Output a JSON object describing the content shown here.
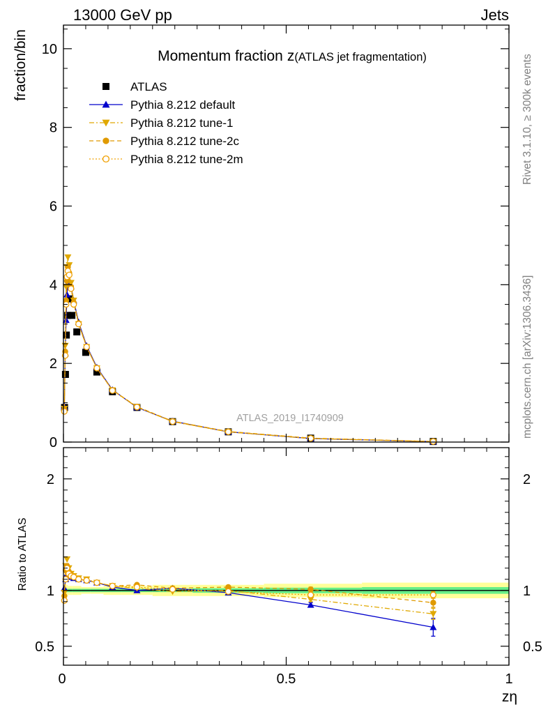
{
  "header": {
    "energy_label": "13000 GeV pp",
    "process_label": "Jets",
    "side_rivet": "Rivet 3.1.10, ≥ 300k events",
    "side_mcplots": "mcplots.cern.ch [arXiv:1306.3436]",
    "watermark": "ATLAS_2019_I1740909"
  },
  "chart_data": [
    {
      "type": "scatter",
      "id": "main",
      "title": "Momentum fraction",
      "title_var": "z",
      "title_note": "(ATLAS jet fragmentation)",
      "xlabel": "",
      "ylabel": "fraction/bin",
      "xlim": [
        0,
        1
      ],
      "ylim": [
        0,
        10.6
      ],
      "yticks": [
        0,
        2,
        4,
        6,
        8,
        10
      ],
      "ytick_labels": [
        "0",
        "2",
        "4",
        "6",
        "8",
        "10"
      ],
      "legend_position": "top-left",
      "series": [
        {
          "name": "ATLAS",
          "color": "#000000",
          "marker": "square",
          "line": "none",
          "x": [
            0.0025,
            0.0045,
            0.0065,
            0.0095,
            0.0135,
            0.019,
            0.03,
            0.05,
            0.075,
            0.11,
            0.165,
            0.245,
            0.37,
            0.555,
            0.83
          ],
          "y": [
            0.88,
            1.72,
            2.72,
            3.22,
            3.64,
            3.22,
            2.8,
            2.28,
            1.78,
            1.28,
            0.88,
            0.52,
            0.26,
            0.1,
            0.015
          ]
        },
        {
          "name": "Pythia 8.212 default",
          "color": "#0000cc",
          "marker": "triangle-up",
          "line": "solid",
          "x": [
            0.002,
            0.004,
            0.006,
            0.008,
            0.01,
            0.013,
            0.017,
            0.023,
            0.034,
            0.052,
            0.075,
            0.11,
            0.165,
            0.245,
            0.37,
            0.555,
            0.83
          ],
          "y": [
            0.9,
            2.25,
            3.1,
            3.75,
            4.05,
            4.05,
            3.95,
            3.6,
            3.05,
            2.45,
            1.9,
            1.33,
            0.88,
            0.53,
            0.26,
            0.09,
            0.01
          ]
        },
        {
          "name": "Pythia 8.212 tune-1",
          "color": "#e0a800",
          "marker": "triangle-down",
          "line": "dashdot",
          "x": [
            0.002,
            0.004,
            0.006,
            0.008,
            0.01,
            0.013,
            0.017,
            0.023,
            0.034,
            0.052,
            0.075,
            0.11,
            0.165,
            0.245,
            0.37,
            0.555,
            0.83
          ],
          "y": [
            0.85,
            2.45,
            3.95,
            4.45,
            4.7,
            4.5,
            4.05,
            3.6,
            3.0,
            2.42,
            1.88,
            1.32,
            0.89,
            0.52,
            0.26,
            0.09,
            0.012
          ]
        },
        {
          "name": "Pythia 8.212 tune-2c",
          "color": "#e09a00",
          "marker": "circle",
          "line": "dashed",
          "x": [
            0.002,
            0.004,
            0.006,
            0.008,
            0.01,
            0.013,
            0.017,
            0.023,
            0.034,
            0.052,
            0.075,
            0.11,
            0.165,
            0.245,
            0.37,
            0.555,
            0.83
          ],
          "y": [
            0.82,
            2.3,
            3.6,
            4.1,
            4.45,
            4.3,
            3.95,
            3.55,
            3.02,
            2.43,
            1.88,
            1.32,
            0.9,
            0.53,
            0.27,
            0.1,
            0.014
          ]
        },
        {
          "name": "Pythia 8.212 tune-2m",
          "color": "#f0a000",
          "marker": "circle-open",
          "line": "dotted",
          "x": [
            0.002,
            0.004,
            0.006,
            0.008,
            0.01,
            0.013,
            0.017,
            0.023,
            0.034,
            0.052,
            0.075,
            0.11,
            0.165,
            0.245,
            0.37,
            0.555,
            0.83
          ],
          "y": [
            0.78,
            2.2,
            3.5,
            4.2,
            4.35,
            4.25,
            3.9,
            3.5,
            3.0,
            2.42,
            1.88,
            1.31,
            0.89,
            0.52,
            0.26,
            0.095,
            0.015
          ]
        }
      ]
    },
    {
      "type": "scatter",
      "id": "ratio",
      "xlabel": "zη",
      "ylabel": "Ratio to ATLAS",
      "xlim": [
        0,
        1
      ],
      "ylim": [
        0.33,
        2.28
      ],
      "xticks": [
        0,
        0.5,
        1
      ],
      "xtick_labels": [
        "0",
        "0.5",
        "1"
      ],
      "yticks": [
        0.5,
        1,
        2
      ],
      "ytick_labels": [
        "0.5",
        "1",
        "2"
      ],
      "reference_line": 1,
      "bands": [
        {
          "name": "ATLAS uncertainty (total)",
          "color": "#ffff99",
          "edges": [
            0,
            0.01,
            0.02,
            0.04,
            0.06,
            0.09,
            0.13,
            0.2,
            0.29,
            0.45,
            0.67,
            1.0
          ],
          "lo": [
            0.95,
            0.96,
            0.96,
            0.97,
            0.97,
            0.96,
            0.96,
            0.95,
            0.95,
            0.94,
            0.93
          ],
          "hi": [
            1.05,
            1.04,
            1.04,
            1.03,
            1.03,
            1.04,
            1.04,
            1.05,
            1.05,
            1.06,
            1.07
          ]
        },
        {
          "name": "ATLAS uncertainty (stat)",
          "color": "#66ee88",
          "edges": [
            0,
            0.01,
            0.02,
            0.04,
            0.06,
            0.09,
            0.13,
            0.2,
            0.29,
            0.45,
            0.67,
            1.0
          ],
          "lo": [
            0.985,
            0.985,
            0.985,
            0.985,
            0.985,
            0.985,
            0.985,
            0.985,
            0.98,
            0.975,
            0.97
          ],
          "hi": [
            1.015,
            1.015,
            1.015,
            1.015,
            1.015,
            1.015,
            1.015,
            1.015,
            1.02,
            1.025,
            1.03
          ]
        }
      ],
      "series": [
        {
          "name": "Pythia 8.212 default",
          "color": "#0000cc",
          "marker": "triangle-up",
          "line": "solid",
          "x": [
            0.002,
            0.005,
            0.008,
            0.012,
            0.017,
            0.023,
            0.034,
            0.052,
            0.075,
            0.11,
            0.165,
            0.245,
            0.37,
            0.555,
            0.83
          ],
          "y": [
            1.02,
            1.1,
            1.15,
            1.13,
            1.12,
            1.11,
            1.1,
            1.09,
            1.07,
            1.03,
            1.0,
            1.02,
            0.98,
            0.87,
            0.67
          ],
          "err": [
            0,
            0,
            0,
            0,
            0,
            0,
            0,
            0,
            0,
            0,
            0,
            0,
            0,
            0.02,
            0.08
          ]
        },
        {
          "name": "Pythia 8.212 tune-1",
          "color": "#e0a800",
          "marker": "triangle-down",
          "line": "dashdot",
          "x": [
            0.002,
            0.005,
            0.008,
            0.012,
            0.017,
            0.023,
            0.034,
            0.052,
            0.075,
            0.11,
            0.165,
            0.245,
            0.37,
            0.555,
            0.83
          ],
          "y": [
            0.98,
            1.22,
            1.28,
            1.2,
            1.15,
            1.13,
            1.11,
            1.1,
            1.07,
            1.04,
            1.02,
            0.99,
            1.0,
            0.92,
            0.79
          ],
          "err": [
            0,
            0,
            0,
            0,
            0,
            0,
            0,
            0,
            0,
            0,
            0,
            0,
            0,
            0.02,
            0.05
          ]
        },
        {
          "name": "Pythia 8.212 tune-2c",
          "color": "#e09a00",
          "marker": "circle",
          "line": "dashed",
          "x": [
            0.002,
            0.005,
            0.008,
            0.012,
            0.017,
            0.023,
            0.034,
            0.052,
            0.075,
            0.11,
            0.165,
            0.245,
            0.37,
            0.555,
            0.83
          ],
          "y": [
            0.95,
            1.18,
            1.22,
            1.17,
            1.14,
            1.12,
            1.1,
            1.09,
            1.07,
            1.04,
            1.05,
            1.02,
            1.03,
            1.01,
            0.89
          ],
          "err": [
            0,
            0,
            0,
            0,
            0,
            0,
            0,
            0,
            0,
            0,
            0,
            0,
            0,
            0.02,
            0.04
          ]
        },
        {
          "name": "Pythia 8.212 tune-2m",
          "color": "#f0a000",
          "marker": "circle-open",
          "line": "dotted",
          "x": [
            0.002,
            0.005,
            0.008,
            0.012,
            0.017,
            0.023,
            0.034,
            0.052,
            0.075,
            0.11,
            0.165,
            0.245,
            0.37,
            0.555,
            0.83
          ],
          "y": [
            0.91,
            1.1,
            1.2,
            1.15,
            1.13,
            1.12,
            1.1,
            1.09,
            1.07,
            1.04,
            1.03,
            1.01,
            0.99,
            0.96,
            0.96
          ],
          "err": [
            0,
            0,
            0,
            0,
            0,
            0,
            0,
            0,
            0,
            0,
            0,
            0,
            0,
            0.02,
            0.03
          ]
        }
      ]
    }
  ]
}
